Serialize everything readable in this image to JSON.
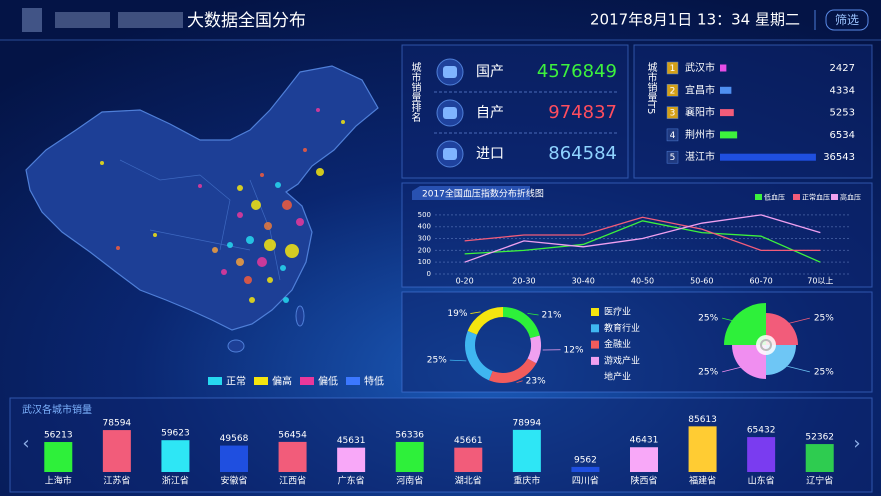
{
  "header": {
    "title": "大数据全国分布",
    "datetime": "2017年8月1日 13：34 星期二",
    "button": "筛选"
  },
  "map_legend": [
    {
      "label": "正常",
      "color": "#27d9f0"
    },
    {
      "label": "偏高",
      "color": "#f5e50f"
    },
    {
      "label": "偏低",
      "color": "#e9389b"
    },
    {
      "label": "特低",
      "color": "#3c78ff"
    }
  ],
  "source_panel": {
    "label": "城市销量排名",
    "rows": [
      {
        "name": "国产",
        "value": 4576849,
        "color": "#3df23d"
      },
      {
        "name": "自产",
        "value": 974837,
        "color": "#ff4d5e"
      },
      {
        "name": "进口",
        "value": 864584,
        "color": "#8fd3ff"
      }
    ]
  },
  "chart_data": [
    {
      "type": "hbar",
      "title": "城市销量T5",
      "ranks": [
        1,
        2,
        3,
        4,
        5
      ],
      "categories": [
        "武汉市",
        "宜昌市",
        "襄阳市",
        "荆州市",
        "湛江市"
      ],
      "values": [
        2427,
        4334,
        5253,
        6534,
        36543
      ],
      "colors": [
        "#e64ee6",
        "#4f8ff0",
        "#f25c7a",
        "#3df23d",
        "#1f4fe0"
      ],
      "xlim": [
        0,
        40000
      ]
    },
    {
      "type": "line",
      "title": "2017全国血压指数分布折线图",
      "categories": [
        "0-20",
        "20-30",
        "30-40",
        "40-50",
        "50-60",
        "60-70",
        "70以上"
      ],
      "series": [
        {
          "name": "低血压",
          "color": "#3df23d",
          "values": [
            170,
            200,
            250,
            450,
            350,
            320,
            100
          ]
        },
        {
          "name": "正常血压",
          "color": "#f25c7a",
          "values": [
            280,
            330,
            330,
            480,
            380,
            200,
            200
          ]
        },
        {
          "name": "高血压",
          "color": "#f0a0f0",
          "values": [
            100,
            280,
            230,
            300,
            430,
            500,
            350
          ]
        }
      ],
      "ylim": [
        0,
        550
      ],
      "yticks": [
        0,
        100,
        200,
        300,
        400,
        500
      ],
      "grid": true
    },
    {
      "type": "donut",
      "categories": [
        "医疗业",
        "教育行业",
        "金融业",
        "游戏产业",
        "地产业"
      ],
      "values": [
        19,
        25,
        23,
        12,
        21
      ],
      "value_labels": [
        "19%",
        "25%",
        "23%",
        "12%",
        "21%"
      ],
      "colors": [
        "#f5e50f",
        "#3fb6f0",
        "#f25c5c",
        "#f0a0f0",
        "#2ef03a"
      ]
    },
    {
      "type": "rose",
      "values": [
        25,
        25,
        25,
        25
      ],
      "value_labels": [
        "25%",
        "25%",
        "25%",
        "25%"
      ],
      "colors": [
        "#2ef03a",
        "#f25c7a",
        "#6ec6f5",
        "#f08ef0"
      ]
    },
    {
      "type": "bar",
      "title": "武汉各城市销量",
      "categories": [
        "上海市",
        "江苏省",
        "浙江省",
        "安徽省",
        "江西省",
        "广东省",
        "河南省",
        "湖北省",
        "重庆市",
        "四川省",
        "陕西省",
        "福建省",
        "山东省",
        "辽宁省"
      ],
      "values": [
        56213,
        78594,
        59623,
        49568,
        56454,
        45631,
        56336,
        45661,
        78994,
        9562,
        46431,
        85613,
        65432,
        52362
      ],
      "colors": [
        "#2ef03a",
        "#f25c7a",
        "#2ee6f5",
        "#1f4fe0",
        "#f25c7a",
        "#f8a8f8",
        "#2ef03a",
        "#f25c7a",
        "#2ee6f5",
        "#1f4fe0",
        "#f8a8f8",
        "#ffcc33",
        "#7a3cf0",
        "#2ecc50"
      ],
      "ylim": [
        0,
        90000
      ]
    }
  ]
}
